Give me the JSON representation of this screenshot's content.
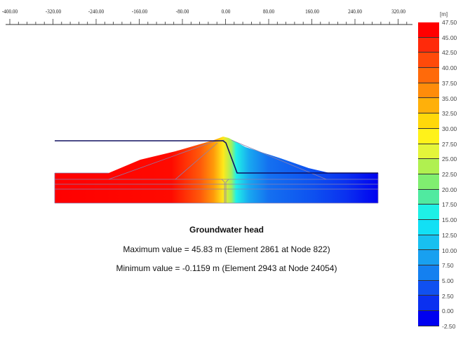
{
  "ruler": {
    "labels": [
      "-400.00",
      "-320.00",
      "-240.00",
      "-160.00",
      "-80.00",
      "0.00",
      "80.00",
      "160.00",
      "240.00",
      "320.00"
    ]
  },
  "legend": {
    "unit": "[m]",
    "labels": [
      "47.50",
      "45.00",
      "42.50",
      "40.00",
      "37.50",
      "35.00",
      "32.50",
      "30.00",
      "27.50",
      "25.00",
      "22.50",
      "20.00",
      "17.50",
      "15.00",
      "12.50",
      "10.00",
      "7.50",
      "5.00",
      "2.50",
      "0.00",
      "-2.50"
    ],
    "colors": [
      "#ff0000",
      "#ff2a0a",
      "#ff4a0a",
      "#ff6a0a",
      "#ff8c0a",
      "#ffb00a",
      "#ffd80a",
      "#fff21a",
      "#e4f53a",
      "#b0f050",
      "#80ee70",
      "#50eaa0",
      "#1ef0e6",
      "#12e0f5",
      "#18c0f0",
      "#18a0f0",
      "#1480f0",
      "#1050f0",
      "#0a30f0",
      "#0000f0"
    ]
  },
  "caption": {
    "title": "Groundwater head",
    "maximum": "Maximum value = 45.83 m (Element 2861 at Node 822)",
    "minimum": "Minimum value = -0.1159 m (Element 2943 at Node 24054)"
  }
}
